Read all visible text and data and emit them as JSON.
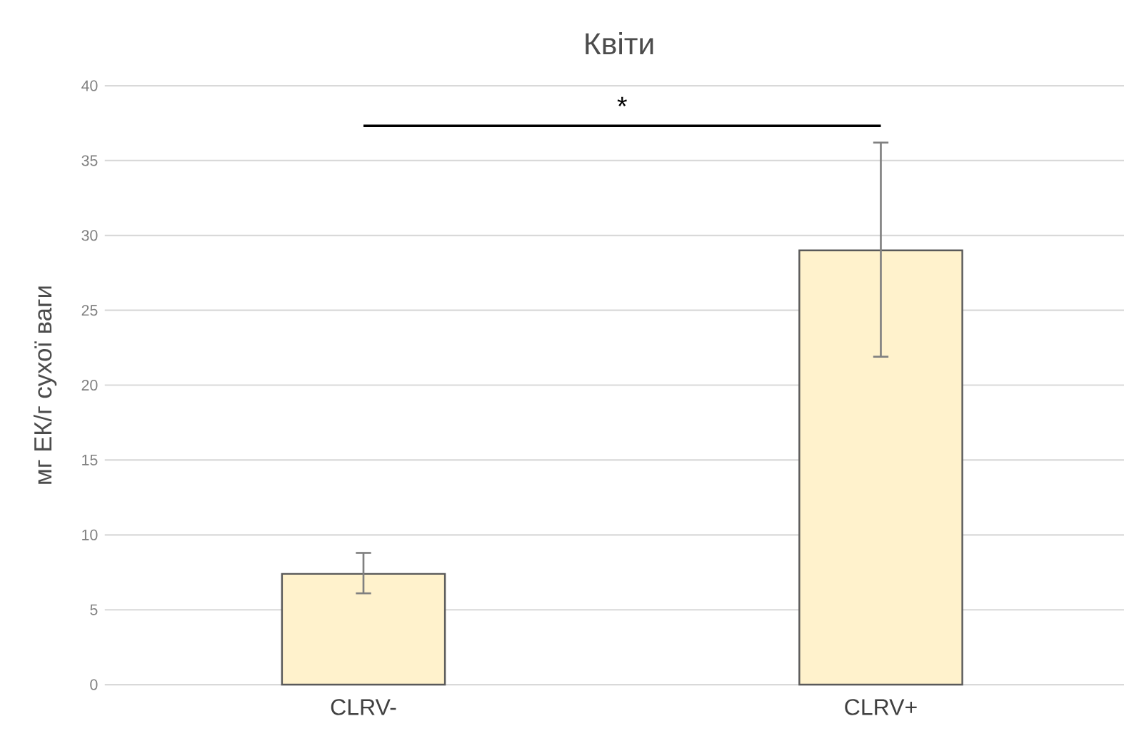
{
  "chart_data": {
    "type": "bar",
    "title": "Квіти",
    "ylabel": "мг ЕК/г сухої ваги",
    "categories": [
      "CLRV-",
      "CLRV+"
    ],
    "values": [
      7.4,
      29.0
    ],
    "errors": [
      [
        6.1,
        8.8
      ],
      [
        21.9,
        36.2
      ]
    ],
    "color": "#fff2cc",
    "ylim": [
      0,
      40
    ],
    "yticks": [
      0,
      5,
      10,
      15,
      20,
      25,
      30,
      35,
      40
    ],
    "grid": "y",
    "annotations": [
      "*"
    ]
  }
}
